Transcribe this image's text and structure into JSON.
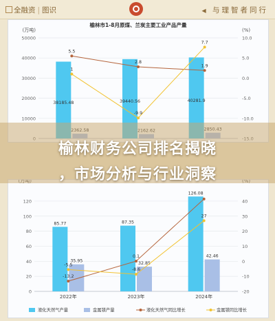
{
  "header": {
    "brand_name": "全融资",
    "brand_sub": "图识",
    "brand_badge_icon": "magnifier-icon",
    "motto": "与理智者同行",
    "motto_arrow_icon": "triangle-left-icon",
    "colors": {
      "background": "#efe6cf",
      "text": "#8a6a3a",
      "badge": "#c94b2e"
    }
  },
  "overlay": {
    "line1": "榆林财务公司排名揭晓",
    "line2": "，市场分析与行业洞察"
  },
  "chart_data": [
    {
      "type": "bar",
      "title": "榆林市1-8月原煤、兰炭主要工业产品产量",
      "left_unit": "(万吨)",
      "right_unit": "(%)",
      "categories": [
        "2022年",
        "2023年",
        "2024年"
      ],
      "y_left_ticks": [
        "0",
        "10000",
        "20000",
        "30000",
        "40000",
        "50000"
      ],
      "ylim_left": [
        0,
        50000
      ],
      "y_right_ticks": [
        "-15.0",
        "-10.0",
        "-5.0",
        "0.0",
        "5.0",
        "10.0"
      ],
      "ylim_right": [
        -15,
        10
      ],
      "series": [
        {
          "name": "原煤产量",
          "kind": "bar",
          "axis": "left",
          "color": "#4fc8f0",
          "values": [
            38185.48,
            39440.56,
            40281.9
          ],
          "labels": [
            "38185.48",
            "39440.56",
            "40281.9"
          ]
        },
        {
          "name": "兰炭产量",
          "kind": "bar",
          "axis": "left",
          "color": "#a9bfe6",
          "values": [
            2362.58,
            2162.62,
            2850.43
          ],
          "labels": [
            "2362.58",
            "2162.62",
            "2850.43"
          ]
        },
        {
          "name": "原煤同比增长",
          "kind": "line",
          "axis": "right",
          "color": "#b5643b",
          "values": [
            5.5,
            2.8,
            1.9
          ],
          "labels": [
            "5.5",
            "2.8",
            "1.9"
          ]
        },
        {
          "name": "兰炭同比增长",
          "kind": "line",
          "axis": "right",
          "color": "#f2c230",
          "values": [
            1,
            -9.9,
            7.7
          ],
          "labels": [
            "1",
            "-9.9",
            "7.7"
          ]
        }
      ]
    },
    {
      "type": "bar",
      "left_unit": "(万吨)",
      "right_unit": "(%)",
      "categories": [
        "2022年",
        "2023年",
        "2024年"
      ],
      "y_left_ticks": [
        "0",
        "20",
        "40",
        "60",
        "80",
        "100",
        "120"
      ],
      "ylim_left": [
        0,
        130
      ],
      "y_right_ticks": [
        "-20",
        "-10",
        "0",
        "10",
        "20",
        "30",
        "40"
      ],
      "ylim_right": [
        -20,
        45
      ],
      "series": [
        {
          "name": "液化天然气产量",
          "kind": "bar",
          "axis": "left",
          "color": "#4fc8f0",
          "values": [
            85.77,
            87.35,
            126.08
          ],
          "labels": [
            "85.77",
            "87.35",
            "126.08"
          ]
        },
        {
          "name": "金属镁产量",
          "kind": "bar",
          "axis": "left",
          "color": "#a9bfe6",
          "values": [
            35.95,
            32.85,
            42.46
          ],
          "labels": [
            "35.95",
            "32.85",
            "42.46"
          ]
        },
        {
          "name": "液化天然气同比增长",
          "kind": "line",
          "axis": "right",
          "color": "#b5643b",
          "values": [
            -13.2,
            0.1,
            41.4
          ],
          "labels": [
            "-13.2",
            "0.1",
            ""
          ]
        },
        {
          "name": "金属镁同比增长",
          "kind": "line",
          "axis": "right",
          "color": "#f2c230",
          "values": [
            -5.5,
            -8.6,
            27
          ],
          "labels": [
            "-5.5",
            "-8.6",
            "27"
          ]
        }
      ],
      "legend": {
        "placement": "bottom",
        "items": [
          "液化天然气产量",
          "金属镁产量",
          "液化天然气同比增长",
          "金属镁同比增长"
        ]
      }
    }
  ]
}
